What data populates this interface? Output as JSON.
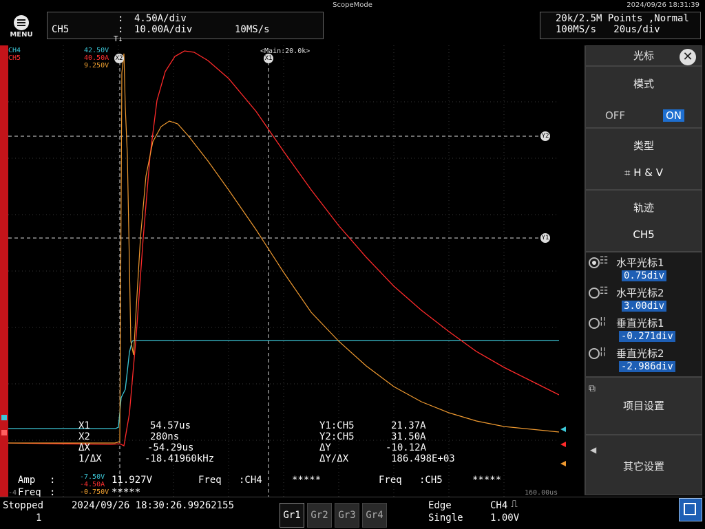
{
  "app": {
    "title": "ScopeMode",
    "datetime": "2024/09/26 18:31:39",
    "menu_label": "MENU"
  },
  "channel_box": {
    "channel": "CH5",
    "scale1": "4.50A/div",
    "scale2": "10.00A/div",
    "rate": "10MS/s"
  },
  "acq_box": {
    "points": "20k/2.5M Points ,Normal",
    "rate_time": "100MS/s   20us/div"
  },
  "overlay": {
    "zoom_label": "Main:20.0k",
    "ch_labels": [
      {
        "name": "CH4",
        "value": "42.50V",
        "color": "#3cc8d8"
      },
      {
        "name": "CH5",
        "value": "40.50A",
        "color": "#ff3030"
      },
      {
        "name": "",
        "value": "9.250V",
        "color": "#f0a030"
      }
    ],
    "x_markers": {
      "x1": "X1",
      "x2": "X2"
    },
    "y_markers": {
      "y1": "Y1",
      "y2": "Y2"
    },
    "time_end": "160.00us",
    "left_edge_label": "-4"
  },
  "measurements": {
    "x1_label": "X1",
    "x1_value": "54.57us",
    "x2_label": "X2",
    "x2_value": "280ns",
    "dx_label": "ΔX",
    "dx_value": "-54.29us",
    "inv_dx_label": "1/ΔX",
    "inv_dx_value": "-18.41960kHz",
    "y1_label": "Y1:CH5",
    "y1_value": "21.37A",
    "y2_label": "Y2:CH5",
    "y2_value": "31.50A",
    "dy_label": "ΔY",
    "dy_value": "-10.12A",
    "dydx_label": "ΔY/ΔX",
    "dydx_value": "186.498E+03"
  },
  "amp_row": {
    "amp_label": "Amp",
    "amp_sep": ":",
    "freq_label": "Freq",
    "freq_sep": ":",
    "ch_low1": "-7.50V",
    "ch_low2": "-4.50A",
    "ch_low3": "-0.750V",
    "amp_value": "11.927V",
    "freq_ch4_label": "Freq   :CH4",
    "freq_ch4_value": "*****",
    "freq_ch5_label": "Freq   :CH5",
    "freq_ch5_value": "*****",
    "freq_value_left": "*****"
  },
  "side_panel": {
    "title": "光标",
    "mode_title": "模式",
    "mode_off": "OFF",
    "mode_on": "ON",
    "type_title": "类型",
    "type_value": "H & V",
    "trace_title": "轨迹",
    "trace_value": "CH5",
    "cursors": [
      {
        "label": "水平光标1",
        "value": "0.75div",
        "selected": true
      },
      {
        "label": "水平光标2",
        "value": "3.00div",
        "selected": false
      },
      {
        "label": "垂直光标1",
        "value": "-0.271div",
        "selected": false
      },
      {
        "label": "垂直光标2",
        "value": "-2.986div",
        "selected": false
      }
    ],
    "item_settings": "项目设置",
    "other_settings": "其它设置"
  },
  "status_bar": {
    "state": "Stopped",
    "count": "1",
    "timestamp": "2024/09/26 18:30:26.99262155",
    "groups": [
      "Gr1",
      "Gr2",
      "Gr3",
      "Gr4"
    ],
    "trigger_type": "Edge",
    "trigger_mode": "Single",
    "trigger_source": "CH4",
    "trigger_level": "1.00V"
  },
  "colors": {
    "ch4": "#3cc8d8",
    "ch5": "#ff2a2a",
    "math": "#f09a30",
    "accent": "#1e5fb5",
    "left_bar": "#c4141a"
  }
}
